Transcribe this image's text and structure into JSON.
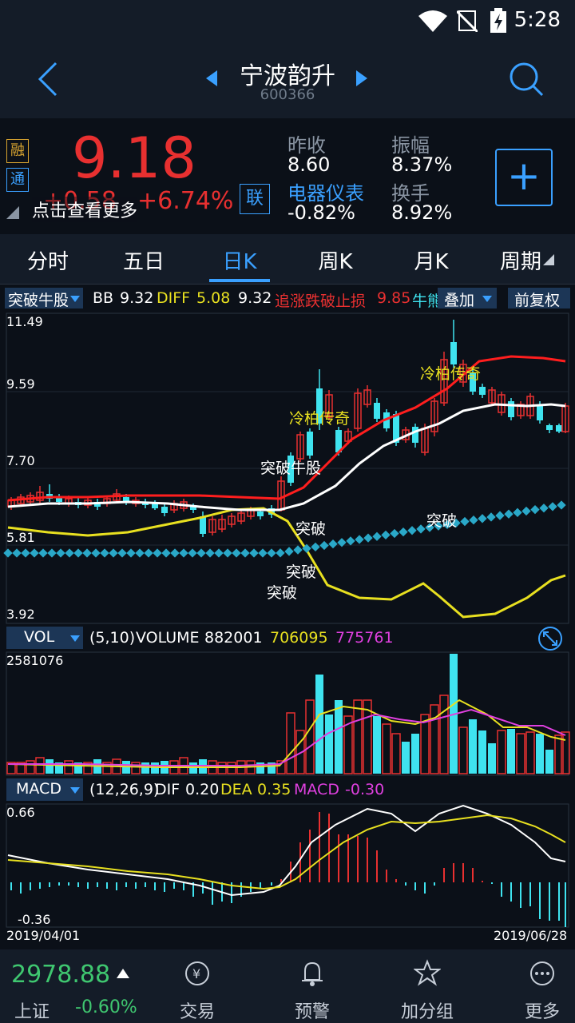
{
  "status": {
    "time": "5:28"
  },
  "header": {
    "name": "宁波韵升",
    "code": "600366"
  },
  "quote": {
    "badge_rong": "融",
    "badge_tong": "通",
    "badge_lian": "联",
    "price": "9.18",
    "change": "+0.58",
    "change_pct": "+6.74%",
    "tip": "点击查看更多",
    "prev_close_label": "昨收",
    "prev_close": "8.60",
    "elec_label": "电器仪表",
    "elec_change": "-0.82%",
    "amplitude_label": "振幅",
    "amplitude": "8.37%",
    "turnover_label": "换手",
    "turnover": "8.92%",
    "plus": "+"
  },
  "tabs": [
    {
      "label": "分时"
    },
    {
      "label": "五日"
    },
    {
      "label": "日K"
    },
    {
      "label": "周K"
    },
    {
      "label": "月K"
    },
    {
      "label": "周期"
    }
  ],
  "indicator": {
    "chip": "突破牛股",
    "bb_label": "BB",
    "bb": "9.32",
    "diff_label": "DIFF",
    "diff": "5.08",
    "val3": "9.32",
    "stop_label": "追涨跌破止损",
    "stop": "9.85",
    "bull_label": "牛熊",
    "overlay": "叠加",
    "adjust": "前复权"
  },
  "main_chart": {
    "y_ticks": [
      "11.49",
      "9.59",
      "7.70",
      "5.81",
      "3.92"
    ],
    "annotations": [
      "冷柏传奇",
      "冷柏传奇",
      "突破牛股",
      "突破",
      "突破",
      "突破",
      "突破"
    ]
  },
  "vol": {
    "chip": "VOL",
    "params": "(5,10)",
    "volume_label": "VOLUME",
    "volume": "882001",
    "ma5": "706095",
    "ma10": "775761",
    "max": "2581076"
  },
  "macd": {
    "chip": "MACD",
    "params": "(12,26,9)",
    "dif_label": "DIF",
    "dif": "0.20",
    "dea_label": "DEA",
    "dea": "0.35",
    "macd_label": "MACD",
    "macd": "-0.30",
    "max": "0.66",
    "min": "-0.36",
    "start_date": "2019/04/01",
    "end_date": "2019/06/28"
  },
  "bottom": {
    "index_value": "2978.88",
    "index_name": "上证",
    "index_change": "-0.60%",
    "nav": [
      {
        "label": "交易"
      },
      {
        "label": "预警"
      },
      {
        "label": "加分组"
      },
      {
        "label": "更多"
      }
    ]
  },
  "colors": {
    "up": "#e83030",
    "down": "#3fe3ef",
    "accent": "#3aa0ff",
    "yellow": "#e8e020",
    "magenta": "#e040e0"
  }
}
